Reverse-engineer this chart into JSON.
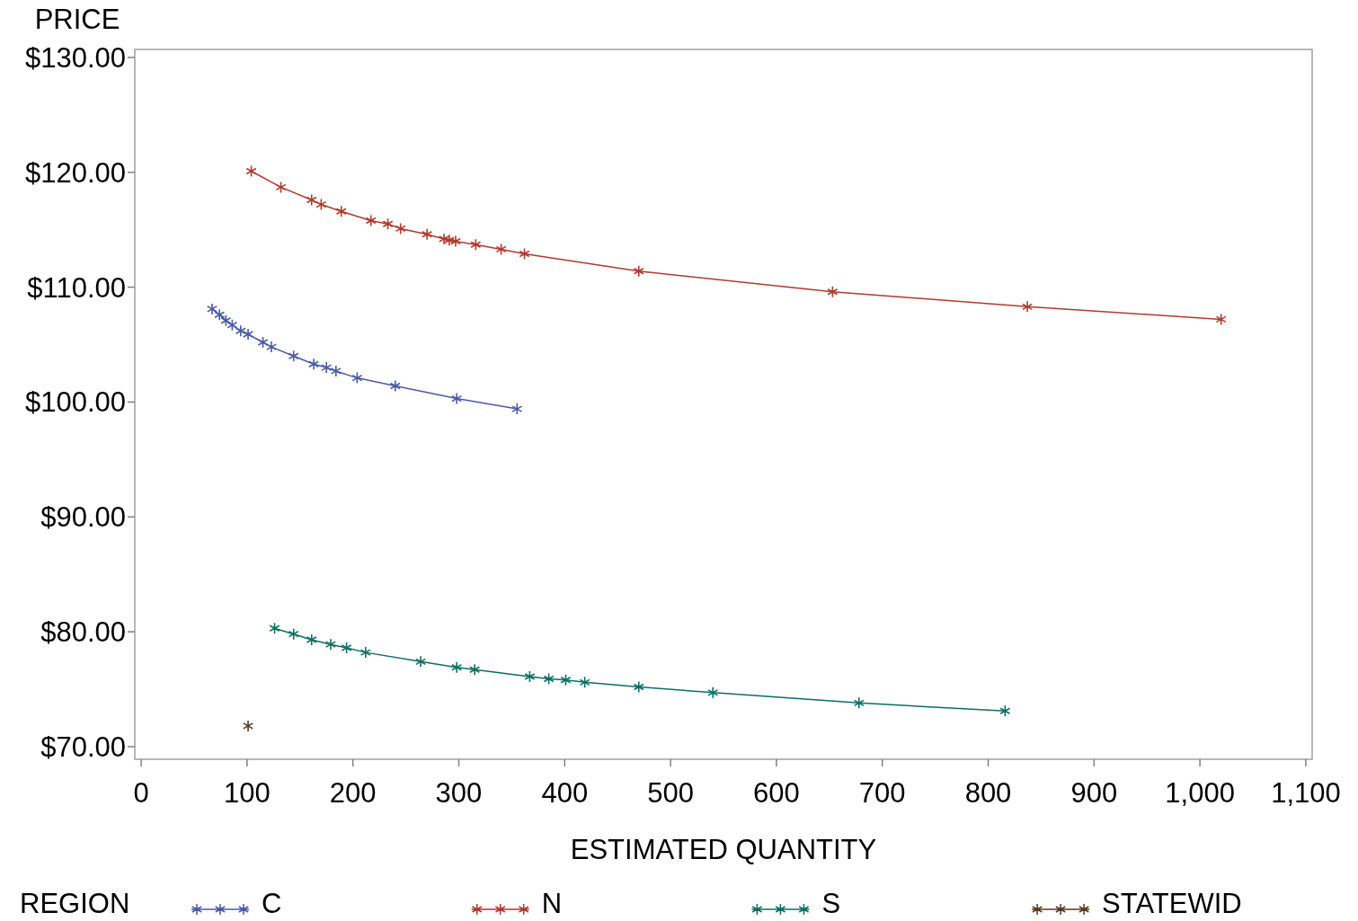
{
  "chart_data": {
    "type": "line",
    "xlabel": "ESTIMATED QUANTITY",
    "ylabel": "PRICE",
    "legend_title": "REGION",
    "legend": "bottom",
    "marker": "cross",
    "line_style": "solid",
    "grid": false,
    "xlim": [
      -6,
      1106
    ],
    "xticks": [
      0,
      100,
      200,
      300,
      400,
      500,
      600,
      700,
      800,
      900,
      {
        "value": 1000,
        "label": "1,000"
      },
      {
        "value": 1100,
        "label": "1,100"
      }
    ],
    "ylim": [
      68.9,
      130.7
    ],
    "yticks": [
      {
        "value": 70,
        "label": "$70.00"
      },
      {
        "value": 80,
        "label": "$80.00"
      },
      {
        "value": 90,
        "label": "$90.00"
      },
      {
        "value": 100,
        "label": "$100.00"
      },
      {
        "value": 110,
        "label": "$110.00"
      },
      {
        "value": 120,
        "label": "$120.00"
      },
      {
        "value": 130,
        "label": "$130.00"
      }
    ],
    "series": [
      {
        "name": "C",
        "color": "#4a5aa8",
        "x": [
          67,
          74,
          80,
          86,
          94,
          101,
          115,
          123,
          144,
          163,
          175,
          184,
          204,
          240,
          298,
          355
        ],
        "values": [
          108.1,
          107.6,
          107.1,
          106.7,
          106.2,
          105.9,
          105.2,
          104.8,
          104.0,
          103.3,
          103.0,
          102.7,
          102.1,
          101.4,
          100.3,
          99.4
        ]
      },
      {
        "name": "N",
        "color": "#b03a2e",
        "x": [
          104,
          132,
          161,
          170,
          189,
          217,
          233,
          245,
          270,
          286,
          291,
          297,
          316,
          340,
          362,
          470,
          653,
          837,
          1020
        ],
        "values": [
          120.1,
          118.7,
          117.6,
          117.2,
          116.6,
          115.8,
          115.5,
          115.1,
          114.6,
          114.2,
          114.1,
          114.0,
          113.7,
          113.3,
          112.9,
          111.4,
          109.6,
          108.3,
          107.2
        ]
      },
      {
        "name": "S",
        "color": "#0e6e62",
        "x": [
          126,
          144,
          161,
          179,
          194,
          212,
          264,
          298,
          315,
          367,
          385,
          401,
          419,
          470,
          540,
          678,
          816
        ],
        "values": [
          80.3,
          79.8,
          79.3,
          78.9,
          78.6,
          78.2,
          77.4,
          76.9,
          76.7,
          76.1,
          75.9,
          75.8,
          75.6,
          75.2,
          74.7,
          73.8,
          73.1
        ]
      },
      {
        "name": "STATEWID",
        "color": "#5a3a1a",
        "x": [
          101
        ],
        "values": [
          71.8
        ]
      }
    ]
  }
}
